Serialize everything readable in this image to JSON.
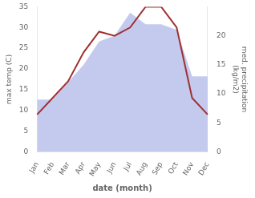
{
  "chart_data": {
    "type": "line",
    "categories": [
      "Jan",
      "Feb",
      "Mar",
      "Apr",
      "May",
      "Jun",
      "Jul",
      "Aug",
      "Sep",
      "Oct",
      "Nov",
      "Dec"
    ],
    "xlabel": "date (month)",
    "ylabel": "max temp (C)",
    "y2label": "med. precipitation\n(kg/m2)",
    "ylim": [
      0,
      35
    ],
    "yticks": [
      0,
      5,
      10,
      15,
      20,
      25,
      30,
      35
    ],
    "y2lim": [
      0,
      25
    ],
    "y2ticks": [
      0,
      5,
      10,
      15,
      20
    ],
    "grid": false,
    "series": [
      {
        "type": "area",
        "axis": "y2",
        "color": "#b0b8e8",
        "values": [
          9,
          9,
          12,
          15,
          19,
          20,
          24,
          22,
          22,
          21,
          13,
          13
        ]
      },
      {
        "type": "line",
        "axis": "y",
        "color": "#a03030",
        "values": [
          9,
          13,
          17,
          24,
          29,
          28,
          30,
          35,
          35,
          30,
          13,
          9
        ]
      }
    ]
  }
}
